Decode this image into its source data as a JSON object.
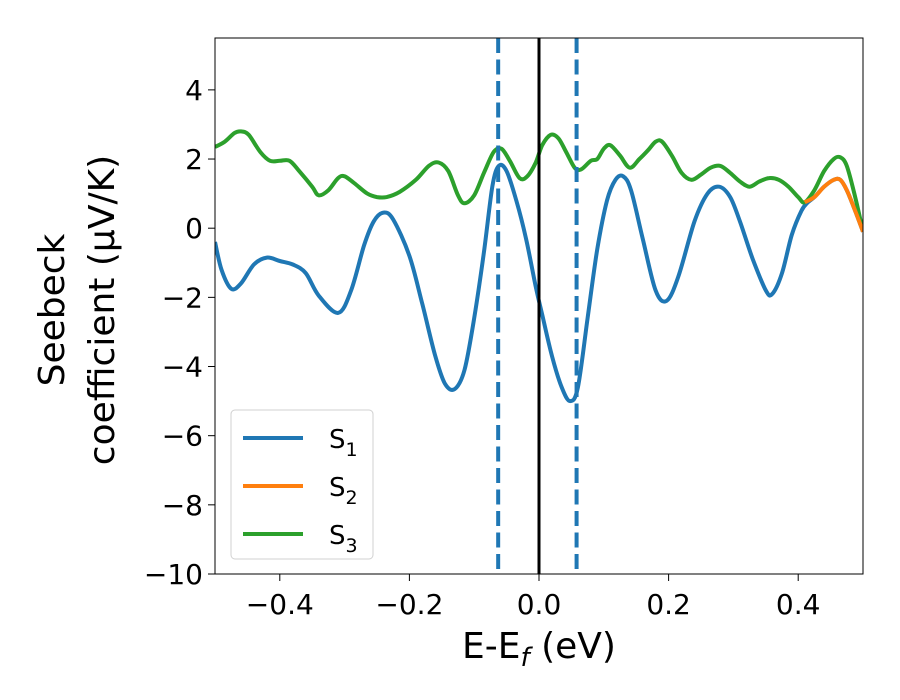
{
  "chart_data": {
    "type": "line",
    "xlabel": {
      "main": "E-E",
      "sub": "f",
      "unit": " (eV)"
    },
    "ylabel": {
      "line1": "Seebeck",
      "line2": "coefficient  (μV/K)"
    },
    "xlim": [
      -0.5,
      0.5
    ],
    "ylim": [
      -10,
      5.5
    ],
    "x_ticks": [
      -0.4,
      -0.2,
      0.0,
      0.2,
      0.4
    ],
    "x_tick_labels": [
      "−0.4",
      "−0.2",
      "0.0",
      "0.2",
      "0.4"
    ],
    "y_ticks": [
      4,
      2,
      0,
      -2,
      -4,
      -6,
      -8,
      -10
    ],
    "y_tick_labels": [
      "4",
      "2",
      "0",
      "−2",
      "−4",
      "−6",
      "−8",
      "−10"
    ],
    "grid": false,
    "legend_position": "lower-left",
    "vertical_lines": [
      {
        "x": 0.0,
        "style": "solid",
        "color": "#000000"
      },
      {
        "x": -0.063,
        "style": "dashed",
        "color": "#1f77b4"
      },
      {
        "x": 0.058,
        "style": "dashed",
        "color": "#1f77b4"
      }
    ],
    "series": [
      {
        "name": "S",
        "sub": "1",
        "color": "#1f77b4",
        "points": [
          [
            -0.5,
            -0.4
          ],
          [
            -0.49,
            -1.2
          ],
          [
            -0.475,
            -1.75
          ],
          [
            -0.46,
            -1.6
          ],
          [
            -0.44,
            -1.05
          ],
          [
            -0.42,
            -0.85
          ],
          [
            -0.4,
            -0.95
          ],
          [
            -0.38,
            -1.05
          ],
          [
            -0.36,
            -1.3
          ],
          [
            -0.34,
            -1.95
          ],
          [
            -0.31,
            -2.45
          ],
          [
            -0.29,
            -1.8
          ],
          [
            -0.27,
            -0.5
          ],
          [
            -0.255,
            0.2
          ],
          [
            -0.24,
            0.45
          ],
          [
            -0.225,
            0.25
          ],
          [
            -0.2,
            -0.8
          ],
          [
            -0.18,
            -2.2
          ],
          [
            -0.16,
            -3.7
          ],
          [
            -0.145,
            -4.5
          ],
          [
            -0.13,
            -4.65
          ],
          [
            -0.115,
            -4.1
          ],
          [
            -0.1,
            -2.6
          ],
          [
            -0.085,
            -0.7
          ],
          [
            -0.072,
            1.2
          ],
          [
            -0.062,
            1.8
          ],
          [
            -0.05,
            1.65
          ],
          [
            -0.035,
            0.8
          ],
          [
            -0.02,
            -0.3
          ],
          [
            -0.005,
            -1.7
          ],
          [
            0.005,
            -2.5
          ],
          [
            0.02,
            -3.7
          ],
          [
            0.035,
            -4.6
          ],
          [
            0.048,
            -5.0
          ],
          [
            0.06,
            -4.6
          ],
          [
            0.075,
            -2.6
          ],
          [
            0.09,
            -0.6
          ],
          [
            0.105,
            0.8
          ],
          [
            0.118,
            1.4
          ],
          [
            0.13,
            1.5
          ],
          [
            0.142,
            1.1
          ],
          [
            0.16,
            -0.3
          ],
          [
            0.18,
            -1.8
          ],
          [
            0.197,
            -2.1
          ],
          [
            0.215,
            -1.4
          ],
          [
            0.24,
            0.2
          ],
          [
            0.26,
            1.0
          ],
          [
            0.278,
            1.2
          ],
          [
            0.295,
            0.9
          ],
          [
            0.31,
            0.2
          ],
          [
            0.33,
            -0.9
          ],
          [
            0.35,
            -1.8
          ],
          [
            0.36,
            -1.9
          ],
          [
            0.375,
            -1.3
          ],
          [
            0.39,
            -0.2
          ],
          [
            0.405,
            0.5
          ],
          [
            0.415,
            0.75
          ],
          [
            0.425,
            0.9
          ],
          [
            0.44,
            1.2
          ],
          [
            0.455,
            1.4
          ],
          [
            0.465,
            1.4
          ],
          [
            0.475,
            1.1
          ],
          [
            0.488,
            0.5
          ],
          [
            0.5,
            -0.1
          ]
        ]
      },
      {
        "name": "S",
        "sub": "2",
        "color": "#ff7f0e",
        "points": [
          [
            0.41,
            0.75
          ],
          [
            0.425,
            0.9
          ],
          [
            0.44,
            1.2
          ],
          [
            0.455,
            1.4
          ],
          [
            0.465,
            1.4
          ],
          [
            0.475,
            1.1
          ],
          [
            0.488,
            0.5
          ],
          [
            0.5,
            -0.1
          ]
        ]
      },
      {
        "name": "S",
        "sub": "3",
        "color": "#2ca02c",
        "points": [
          [
            -0.5,
            2.35
          ],
          [
            -0.485,
            2.5
          ],
          [
            -0.47,
            2.75
          ],
          [
            -0.46,
            2.8
          ],
          [
            -0.448,
            2.7
          ],
          [
            -0.43,
            2.2
          ],
          [
            -0.415,
            1.95
          ],
          [
            -0.4,
            1.95
          ],
          [
            -0.385,
            1.95
          ],
          [
            -0.37,
            1.65
          ],
          [
            -0.35,
            1.2
          ],
          [
            -0.34,
            0.95
          ],
          [
            -0.325,
            1.1
          ],
          [
            -0.31,
            1.45
          ],
          [
            -0.3,
            1.5
          ],
          [
            -0.285,
            1.3
          ],
          [
            -0.265,
            1.0
          ],
          [
            -0.25,
            0.9
          ],
          [
            -0.235,
            0.9
          ],
          [
            -0.215,
            1.05
          ],
          [
            -0.19,
            1.4
          ],
          [
            -0.17,
            1.8
          ],
          [
            -0.155,
            1.9
          ],
          [
            -0.14,
            1.65
          ],
          [
            -0.125,
            0.95
          ],
          [
            -0.115,
            0.72
          ],
          [
            -0.1,
            0.95
          ],
          [
            -0.085,
            1.6
          ],
          [
            -0.07,
            2.2
          ],
          [
            -0.058,
            2.3
          ],
          [
            -0.045,
            1.95
          ],
          [
            -0.03,
            1.45
          ],
          [
            -0.018,
            1.5
          ],
          [
            -0.005,
            1.9
          ],
          [
            0.005,
            2.4
          ],
          [
            0.018,
            2.7
          ],
          [
            0.03,
            2.6
          ],
          [
            0.042,
            2.2
          ],
          [
            0.055,
            1.75
          ],
          [
            0.065,
            1.7
          ],
          [
            0.08,
            1.95
          ],
          [
            0.09,
            2.0
          ],
          [
            0.1,
            2.3
          ],
          [
            0.11,
            2.4
          ],
          [
            0.125,
            2.1
          ],
          [
            0.14,
            1.75
          ],
          [
            0.155,
            2.0
          ],
          [
            0.168,
            2.25
          ],
          [
            0.18,
            2.5
          ],
          [
            0.19,
            2.5
          ],
          [
            0.205,
            2.1
          ],
          [
            0.22,
            1.6
          ],
          [
            0.235,
            1.4
          ],
          [
            0.25,
            1.55
          ],
          [
            0.265,
            1.75
          ],
          [
            0.28,
            1.8
          ],
          [
            0.295,
            1.6
          ],
          [
            0.31,
            1.35
          ],
          [
            0.325,
            1.2
          ],
          [
            0.34,
            1.35
          ],
          [
            0.355,
            1.45
          ],
          [
            0.37,
            1.4
          ],
          [
            0.385,
            1.2
          ],
          [
            0.4,
            0.9
          ],
          [
            0.41,
            0.75
          ],
          [
            0.425,
            1.1
          ],
          [
            0.44,
            1.65
          ],
          [
            0.455,
            2.0
          ],
          [
            0.465,
            2.05
          ],
          [
            0.475,
            1.8
          ],
          [
            0.488,
            0.9
          ],
          [
            0.5,
            -0.1
          ]
        ]
      }
    ]
  }
}
